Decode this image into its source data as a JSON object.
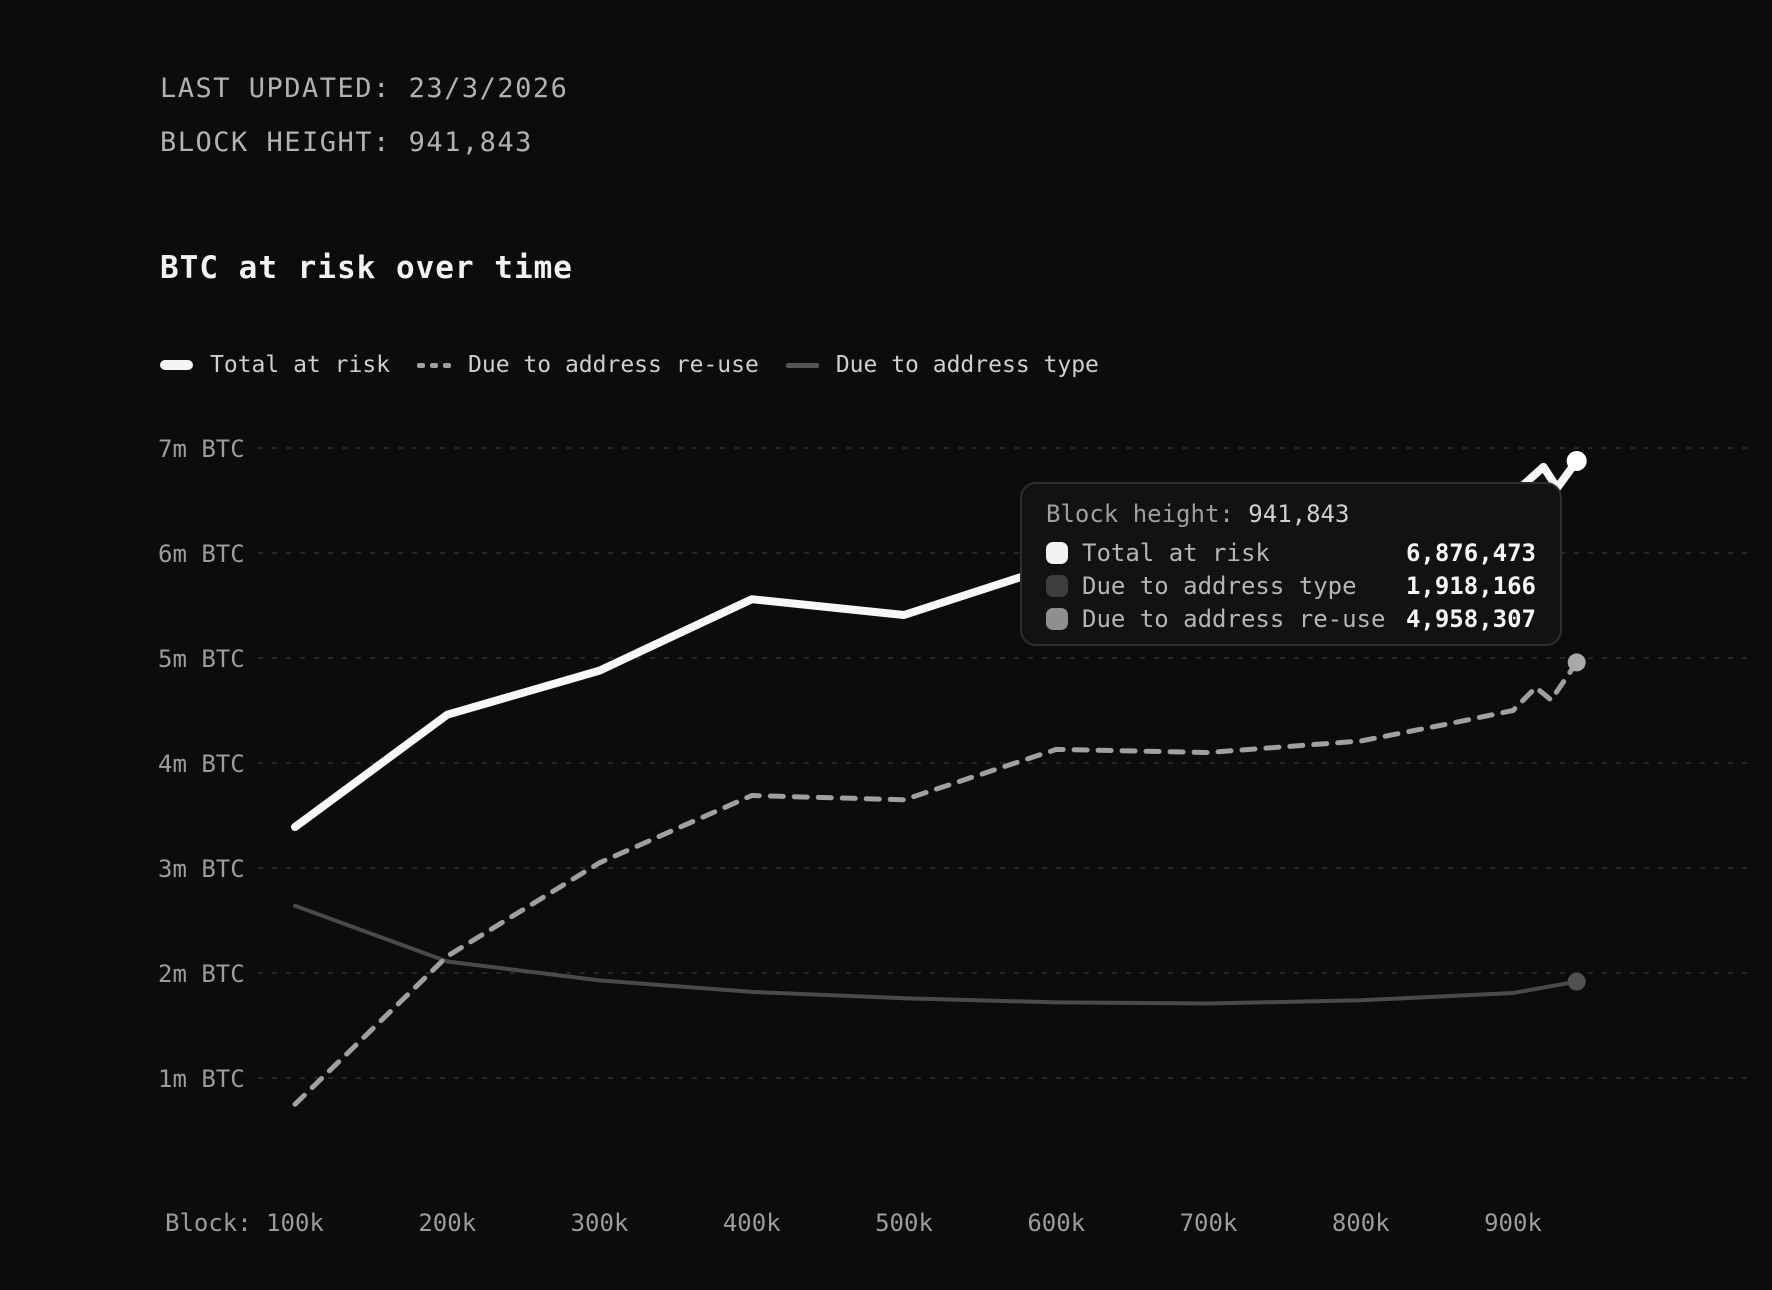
{
  "header": {
    "last_updated_label": "LAST UPDATED:",
    "last_updated_value": "23/3/2026",
    "block_height_label": "BLOCK HEIGHT:",
    "block_height_value": "941,843"
  },
  "title": "BTC at risk over time",
  "legend": {
    "items": [
      {
        "id": "total",
        "label": "Total at risk",
        "swatch": "solid-bold",
        "color": "#f5f5f5"
      },
      {
        "id": "reuse",
        "label": "Due to address re-use",
        "swatch": "dashed",
        "color": "#a0a0a0"
      },
      {
        "id": "type",
        "label": "Due to address type",
        "swatch": "solid-thin",
        "color": "#555555"
      }
    ]
  },
  "tooltip": {
    "title_label": "Block height:",
    "title_value": "941,843",
    "rows": [
      {
        "label": "Total at risk",
        "value": "6,876,473",
        "swatch_color": "#f2f2f2"
      },
      {
        "label": "Due to address type",
        "value": "1,918,166",
        "swatch_color": "#3d3d3d"
      },
      {
        "label": "Due to address re-use",
        "value": "4,958,307",
        "swatch_color": "#8f8f8f"
      }
    ]
  },
  "chart_data": {
    "type": "line",
    "title": "BTC at risk over time",
    "xlabel_prefix": "Block:",
    "x_ticks": [
      {
        "value": 100000,
        "label": "100k"
      },
      {
        "value": 200000,
        "label": "200k"
      },
      {
        "value": 300000,
        "label": "300k"
      },
      {
        "value": 400000,
        "label": "400k"
      },
      {
        "value": 500000,
        "label": "500k"
      },
      {
        "value": 600000,
        "label": "600k"
      },
      {
        "value": 700000,
        "label": "700k"
      },
      {
        "value": 800000,
        "label": "800k"
      },
      {
        "value": 900000,
        "label": "900k"
      }
    ],
    "y_ticks": [
      {
        "value": 7,
        "label": "7m BTC"
      },
      {
        "value": 6,
        "label": "6m BTC"
      },
      {
        "value": 5,
        "label": "5m BTC"
      },
      {
        "value": 4,
        "label": "4m BTC"
      },
      {
        "value": 3,
        "label": "3m BTC"
      },
      {
        "value": 2,
        "label": "2m BTC"
      },
      {
        "value": 1,
        "label": "1m BTC"
      }
    ],
    "x_range": [
      100000,
      941843
    ],
    "y_range_m_btc": [
      0.75,
      7
    ],
    "grid": true,
    "grid_color": "#262626",
    "axis_text_color": "#9c9c9c",
    "legend_position": "top-left",
    "series": [
      {
        "name": "Due to address type",
        "style": "solid",
        "color": "#4a4a4a",
        "width": 4,
        "dash": null,
        "dot_color": "#515151",
        "dot_r": 9,
        "points_m_btc": [
          [
            100000,
            2.64
          ],
          [
            200000,
            2.11
          ],
          [
            300000,
            1.93
          ],
          [
            400000,
            1.82
          ],
          [
            500000,
            1.76
          ],
          [
            600000,
            1.72
          ],
          [
            700000,
            1.71
          ],
          [
            800000,
            1.74
          ],
          [
            900000,
            1.81
          ],
          [
            941843,
            1.918166
          ]
        ]
      },
      {
        "name": "Due to address re-use",
        "style": "dashed",
        "color": "#a0a0a0",
        "width": 5,
        "dash": "13 11",
        "dot_color": "#a9a9a9",
        "dot_r": 9,
        "points_m_btc": [
          [
            100000,
            0.75
          ],
          [
            200000,
            2.16
          ],
          [
            300000,
            3.05
          ],
          [
            400000,
            3.69
          ],
          [
            500000,
            3.65
          ],
          [
            600000,
            4.13
          ],
          [
            700000,
            4.1
          ],
          [
            800000,
            4.21
          ],
          [
            860000,
            4.38
          ],
          [
            900000,
            4.5
          ],
          [
            915000,
            4.72
          ],
          [
            925000,
            4.6
          ],
          [
            941843,
            4.958307
          ]
        ]
      },
      {
        "name": "Total at risk",
        "style": "solid",
        "color": "#f7f7f7",
        "width": 8,
        "dash": null,
        "dot_color": "#ffffff",
        "dot_r": 10,
        "points_m_btc": [
          [
            100000,
            3.39
          ],
          [
            200000,
            4.46
          ],
          [
            300000,
            4.88
          ],
          [
            400000,
            5.56
          ],
          [
            500000,
            5.41
          ],
          [
            600000,
            5.88
          ],
          [
            700000,
            6.18
          ],
          [
            800000,
            6.42
          ],
          [
            900000,
            6.56
          ],
          [
            920000,
            6.82
          ],
          [
            929000,
            6.62
          ],
          [
            941843,
            6.876473
          ]
        ]
      }
    ]
  },
  "colors": {
    "page_bg": "#0c0c0c",
    "title_text": "#f2f2f2",
    "header_text": "#b2b2b2",
    "legend_text": "#cfcfcf",
    "tooltip_bg": "#121212",
    "tooltip_border": "#2e2e2e"
  }
}
